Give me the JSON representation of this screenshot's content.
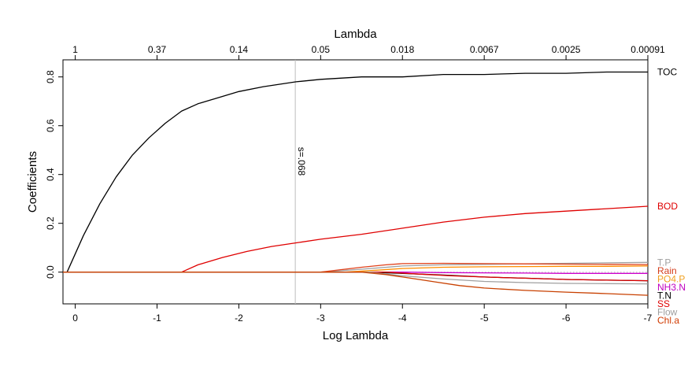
{
  "chart_data": {
    "type": "line",
    "title": "",
    "xlabel": "Log Lambda",
    "ylabel": "Coefficients",
    "top_axis_label": "Lambda",
    "xlim": [
      0.15,
      -7.0
    ],
    "ylim": [
      -0.13,
      0.87
    ],
    "x_ticks": [
      0,
      -1,
      -2,
      -3,
      -4,
      -5,
      -6,
      -7
    ],
    "x_tick_labels": [
      "0",
      "-1",
      "-2",
      "-3",
      "-4",
      "-5",
      "-6",
      "-7"
    ],
    "y_ticks": [
      0.0,
      0.2,
      0.4,
      0.6,
      0.8
    ],
    "y_tick_labels": [
      "0.0",
      "0.2",
      "0.4",
      "0.6",
      "0.8"
    ],
    "top_ticks": [
      0,
      -1,
      -2,
      -3,
      -4,
      -5,
      -6,
      -7
    ],
    "top_tick_labels": [
      "1",
      "0.37",
      "0.14",
      "0.05",
      "0.018",
      "0.0067",
      "0.0025",
      "0.00091"
    ],
    "vline": {
      "x": -2.69,
      "label": "s=.068",
      "color": "#bebebe"
    },
    "hline": {
      "y": 0.0,
      "style": "dotted",
      "color": "#bebebe"
    },
    "series": [
      {
        "name": "TOC",
        "color": "#000000",
        "label_color": "#000000",
        "x": [
          0.1,
          -0.1,
          -0.3,
          -0.5,
          -0.7,
          -0.9,
          -1.1,
          -1.3,
          -1.5,
          -1.7,
          -2.0,
          -2.3,
          -2.7,
          -3.0,
          -3.5,
          -4.0,
          -4.5,
          -5.0,
          -5.5,
          -6.0,
          -6.5,
          -7.0
        ],
        "y": [
          0.0,
          0.15,
          0.28,
          0.39,
          0.48,
          0.55,
          0.61,
          0.66,
          0.69,
          0.71,
          0.74,
          0.76,
          0.78,
          0.79,
          0.8,
          0.8,
          0.81,
          0.81,
          0.815,
          0.815,
          0.82,
          0.82
        ]
      },
      {
        "name": "BOD",
        "color": "#DF0000",
        "label_color": "#DF0000",
        "x": [
          0.15,
          -1.3,
          -1.5,
          -1.8,
          -2.1,
          -2.4,
          -2.7,
          -3.0,
          -3.5,
          -4.0,
          -4.5,
          -5.0,
          -5.5,
          -6.0,
          -6.5,
          -7.0
        ],
        "y": [
          0.0,
          0.0,
          0.03,
          0.06,
          0.085,
          0.105,
          0.12,
          0.135,
          0.155,
          0.18,
          0.205,
          0.225,
          0.24,
          0.25,
          0.26,
          0.27
        ]
      },
      {
        "name": "T.P",
        "color": "#A0A0A0",
        "label_color": "#A0A0A0",
        "x": [
          0.15,
          -3.0,
          -3.5,
          -4.0,
          -4.5,
          -5.0,
          -5.5,
          -6.0,
          -6.5,
          -7.0
        ],
        "y": [
          0.0,
          0.0,
          0.012,
          0.025,
          0.03,
          0.032,
          0.034,
          0.036,
          0.038,
          0.04
        ]
      },
      {
        "name": "Rain",
        "color": "#E0401A",
        "label_color": "#D43E1C",
        "x": [
          0.15,
          -3.0,
          -3.5,
          -3.8,
          -4.0,
          -4.5,
          -5.0,
          -5.5,
          -6.0,
          -6.5,
          -7.0
        ],
        "y": [
          0.0,
          0.0,
          0.02,
          0.03,
          0.035,
          0.036,
          0.035,
          0.034,
          0.033,
          0.032,
          0.031
        ]
      },
      {
        "name": "PO4.P",
        "color": "#FF8C00",
        "label_color": "#F0A020",
        "x": [
          0.15,
          -3.3,
          -3.7,
          -4.0,
          -4.5,
          -5.0,
          -5.5,
          -6.0,
          -6.5,
          -7.0
        ],
        "y": [
          0.0,
          0.0,
          0.008,
          0.015,
          0.02,
          0.022,
          0.023,
          0.024,
          0.024,
          0.025
        ]
      },
      {
        "name": "NH3.N",
        "color": "#CC00CC",
        "label_color": "#C000C0",
        "x": [
          0.15,
          -4.0,
          -4.5,
          -5.0,
          -5.5,
          -6.0,
          -6.5,
          -7.0
        ],
        "y": [
          0.0,
          0.0,
          -0.002,
          -0.003,
          -0.004,
          -0.005,
          -0.005,
          -0.005
        ]
      },
      {
        "name": "T.N",
        "color": "#000000",
        "label_color": "#000000",
        "x": [
          0.15,
          -3.6,
          -4.0,
          -4.5,
          -5.0,
          -5.5,
          -6.0,
          -6.5,
          -7.0
        ],
        "y": [
          0.0,
          0.0,
          -0.005,
          -0.012,
          -0.02,
          -0.025,
          -0.03,
          -0.033,
          -0.035
        ]
      },
      {
        "name": "SS",
        "color": "#DF0000",
        "label_color": "#DF0000",
        "x": [
          0.15,
          -3.8,
          -4.2,
          -4.6,
          -5.0,
          -5.5,
          -6.0,
          -6.5,
          -7.0
        ],
        "y": [
          0.0,
          0.0,
          -0.008,
          -0.015,
          -0.02,
          -0.025,
          -0.03,
          -0.033,
          -0.035
        ]
      },
      {
        "name": "Flow",
        "color": "#A0A0A0",
        "label_color": "#A0A0A0",
        "x": [
          0.15,
          -3.6,
          -4.0,
          -4.5,
          -5.0,
          -5.5,
          -6.0,
          -6.5,
          -7.0
        ],
        "y": [
          0.0,
          0.0,
          -0.015,
          -0.028,
          -0.038,
          -0.043,
          -0.046,
          -0.047,
          -0.048
        ]
      },
      {
        "name": "Chl.a",
        "color": "#C84000",
        "label_color": "#D03A00",
        "x": [
          0.15,
          -3.5,
          -3.8,
          -4.1,
          -4.4,
          -4.7,
          -5.0,
          -5.5,
          -6.0,
          -6.5,
          -7.0
        ],
        "y": [
          0.0,
          0.0,
          -0.01,
          -0.025,
          -0.04,
          -0.055,
          -0.065,
          -0.075,
          -0.082,
          -0.088,
          -0.095
        ]
      }
    ]
  }
}
